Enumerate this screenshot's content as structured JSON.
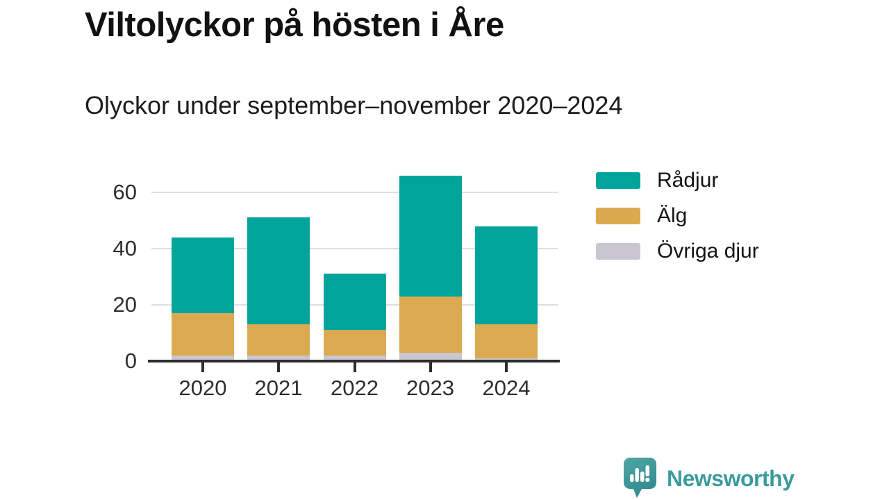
{
  "page": {
    "background": "#ffffff"
  },
  "header": {
    "title": "Viltolyckor på hösten i Åre",
    "subtitle": "Olyckor under september–november 2020–2024"
  },
  "chart_data": {
    "type": "bar",
    "stacked": true,
    "title": "Viltolyckor på hösten i Åre",
    "subtitle": "Olyckor under september–november 2020–2024",
    "categories": [
      "2020",
      "2021",
      "2022",
      "2023",
      "2024"
    ],
    "series": [
      {
        "name": "Rådjur",
        "color": "#00a49b",
        "values": [
          27,
          38,
          20,
          43,
          35
        ]
      },
      {
        "name": "Älg",
        "color": "#dbaa50",
        "values": [
          15,
          11,
          9,
          20,
          12
        ]
      },
      {
        "name": "Övriga djur",
        "color": "#c9c6d1",
        "values": [
          2,
          2,
          2,
          3,
          1
        ]
      }
    ],
    "stack_totals": [
      44,
      51,
      31,
      66,
      48
    ],
    "stack_order_bottom_to_top": [
      "Övriga djur",
      "Älg",
      "Rådjur"
    ],
    "y_ticks": [
      0,
      20,
      40,
      60
    ],
    "ylim": [
      0,
      67
    ],
    "xlabel": "",
    "ylabel": "",
    "grid": "horizontal",
    "legend_position": "right",
    "legend_order": [
      "Rådjur",
      "Älg",
      "Övriga djur"
    ]
  },
  "colors": {
    "grid_line": "#dedede",
    "axis_line": "#2d2d2d",
    "tick_label": "#2e2e2e",
    "brand_teal": "#3b9b9c"
  },
  "footer": {
    "brand": "Newsworthy",
    "logo_icon": "speech-bubble-bar-chart-icon"
  }
}
